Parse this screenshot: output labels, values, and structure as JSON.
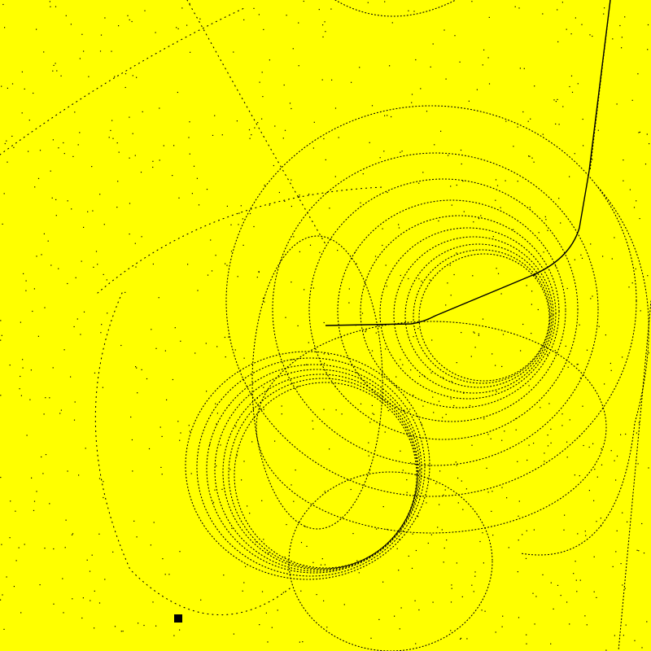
{
  "scene": {
    "background_color": "#ffff00",
    "ink_color": "#000000",
    "description_visible_text": ""
  }
}
